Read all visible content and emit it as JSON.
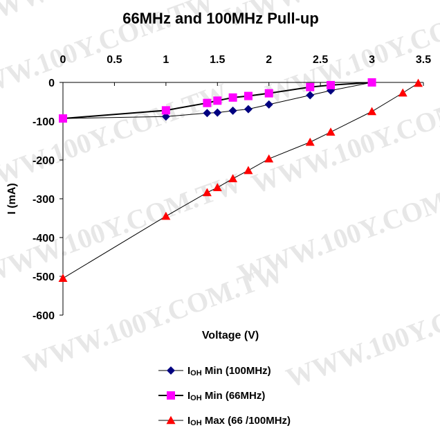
{
  "watermark": "WWW.100Y.COM.TW",
  "chart_data": {
    "type": "line",
    "title": "66MHz and 100MHz Pull-up",
    "xlabel": "Voltage (V)",
    "ylabel": "I (mA)",
    "xlim": [
      0,
      3.5
    ],
    "ylim": [
      -600,
      0
    ],
    "x_ticks": [
      "0",
      "0.5",
      "1",
      "1.5",
      "2",
      "2.5",
      "3",
      "3.5"
    ],
    "y_ticks": [
      "0",
      "-100",
      "-200",
      "-300",
      "-400",
      "-500",
      "-600"
    ],
    "x_axis_position": "top",
    "grid": false,
    "legend_position": "bottom",
    "series": [
      {
        "name": "IOH Min (100MHz)",
        "legend_main": "I",
        "legend_sub": "OH",
        "legend_rest": " Min (100MHz)",
        "marker": "diamond",
        "color": "#000080",
        "line_width": 1,
        "x": [
          0,
          1,
          1.4,
          1.5,
          1.65,
          1.8,
          2,
          2.4,
          2.6,
          3
        ],
        "y": [
          -93,
          -88,
          -79,
          -78,
          -73,
          -69,
          -57,
          -33,
          -21,
          0
        ]
      },
      {
        "name": "IOH Min (66MHz)",
        "legend_main": "I",
        "legend_sub": "OH",
        "legend_rest": " Min (66MHz)",
        "marker": "square",
        "color": "#ff00ff",
        "line_width": 2,
        "x": [
          0,
          1,
          1.4,
          1.5,
          1.65,
          1.8,
          2,
          2.4,
          2.6,
          3
        ],
        "y": [
          -93,
          -72,
          -53,
          -47,
          -39,
          -35,
          -28,
          -12,
          -7,
          0
        ]
      },
      {
        "name": "IOH Max (66 /100MHz)",
        "legend_main": "I",
        "legend_sub": "OH",
        "legend_rest": " Max (66 /100MHz)",
        "marker": "triangle",
        "color": "#ff0000",
        "line_width": 1,
        "x": [
          0,
          1,
          1.4,
          1.5,
          1.65,
          1.8,
          2,
          2.4,
          2.6,
          3,
          3.3,
          3.45
        ],
        "y": [
          -505,
          -345,
          -284,
          -271,
          -248,
          -227,
          -197,
          -154,
          -128,
          -75,
          -27,
          -2
        ]
      }
    ]
  }
}
